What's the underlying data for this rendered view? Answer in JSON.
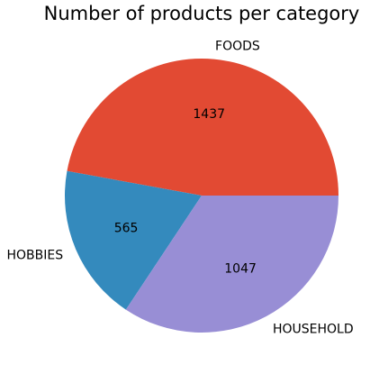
{
  "chart_data": {
    "type": "pie",
    "title": "Number of products per category",
    "categories": [
      "FOODS",
      "HOBBIES",
      "HOUSEHOLD"
    ],
    "values": [
      1437,
      565,
      1047
    ],
    "colors": [
      "#e24a33",
      "#348abd",
      "#988ed5"
    ],
    "start_angle_deg": 0,
    "direction": "counterclockwise",
    "legend": "none"
  }
}
